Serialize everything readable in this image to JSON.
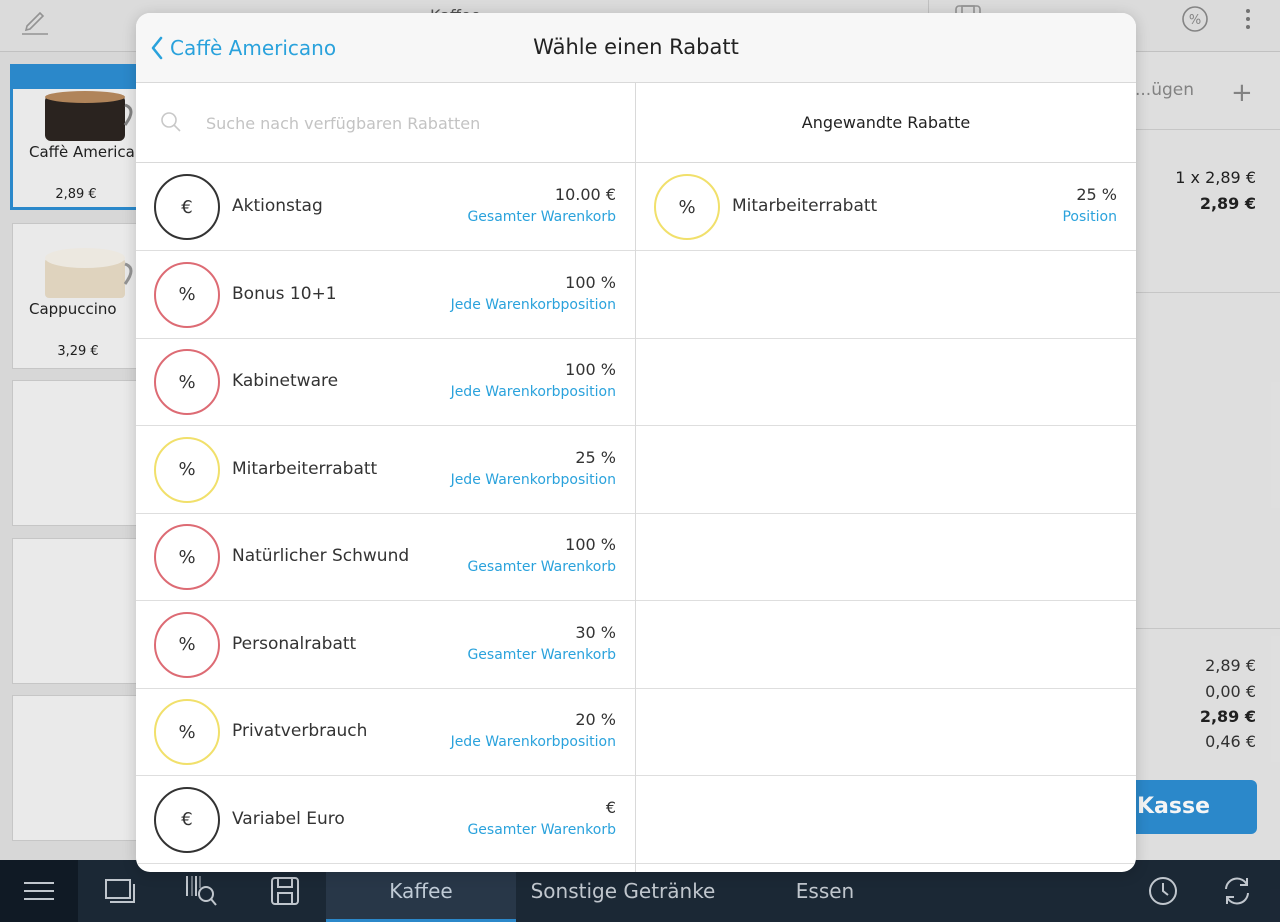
{
  "background": {
    "category_title": "Kaffee",
    "products": [
      {
        "name": "Caffè Americano",
        "price": "2,89 €",
        "selected": true
      },
      {
        "name": "Cappuccino",
        "price": "3,29 €",
        "selected": false
      }
    ],
    "cart": {
      "header_text": "...ügen",
      "line_qty": "1 x 2,89 €",
      "line_total": "2,89 €",
      "subtotal": "2,89 €",
      "discount": "0,00 €",
      "total": "2,89 €",
      "tax": "0,46 €",
      "checkout_label": "Kasse"
    },
    "bottom_tabs": [
      "Kaffee",
      "Sonstige Getränke",
      "Essen"
    ],
    "active_tab": "Kaffee"
  },
  "modal": {
    "back_label": "Caffè Americano",
    "title": "Wähle einen Rabatt",
    "search_placeholder": "Suche nach verfügbaren Rabatten",
    "applied_header": "Angewandte Rabatte",
    "available": [
      {
        "symbol": "€",
        "color": "black",
        "name": "Aktionstag",
        "value": "10.00 €",
        "scope": "Gesamter Warenkorb"
      },
      {
        "symbol": "%",
        "color": "red",
        "name": "Bonus 10+1",
        "value": "100 %",
        "scope": "Jede Warenkorbposition"
      },
      {
        "symbol": "%",
        "color": "red",
        "name": "Kabinetware",
        "value": "100 %",
        "scope": "Jede Warenkorbposition"
      },
      {
        "symbol": "%",
        "color": "yellow",
        "name": "Mitarbeiterrabatt",
        "value": "25 %",
        "scope": "Jede Warenkorbposition"
      },
      {
        "symbol": "%",
        "color": "red",
        "name": "Natürlicher Schwund",
        "value": "100 %",
        "scope": "Gesamter Warenkorb"
      },
      {
        "symbol": "%",
        "color": "red",
        "name": "Personalrabatt",
        "value": "30 %",
        "scope": "Gesamter Warenkorb"
      },
      {
        "symbol": "%",
        "color": "yellow",
        "name": "Privatverbrauch",
        "value": "20 %",
        "scope": "Jede Warenkorbposition"
      },
      {
        "symbol": "€",
        "color": "black",
        "name": "Variabel Euro",
        "value": "€",
        "scope": "Gesamter Warenkorb"
      }
    ],
    "applied": [
      {
        "symbol": "%",
        "color": "yellow",
        "name": "Mitarbeiterrabatt",
        "value": "25 %",
        "scope": "Position"
      }
    ]
  },
  "colors": {
    "accent": "#2aa2dc",
    "checkout": "#2d8ed3",
    "badge_red": "#dd6b74",
    "badge_yellow": "#f1e06b",
    "badge_black": "#333333",
    "bottom_bar": "#1d2a38"
  }
}
